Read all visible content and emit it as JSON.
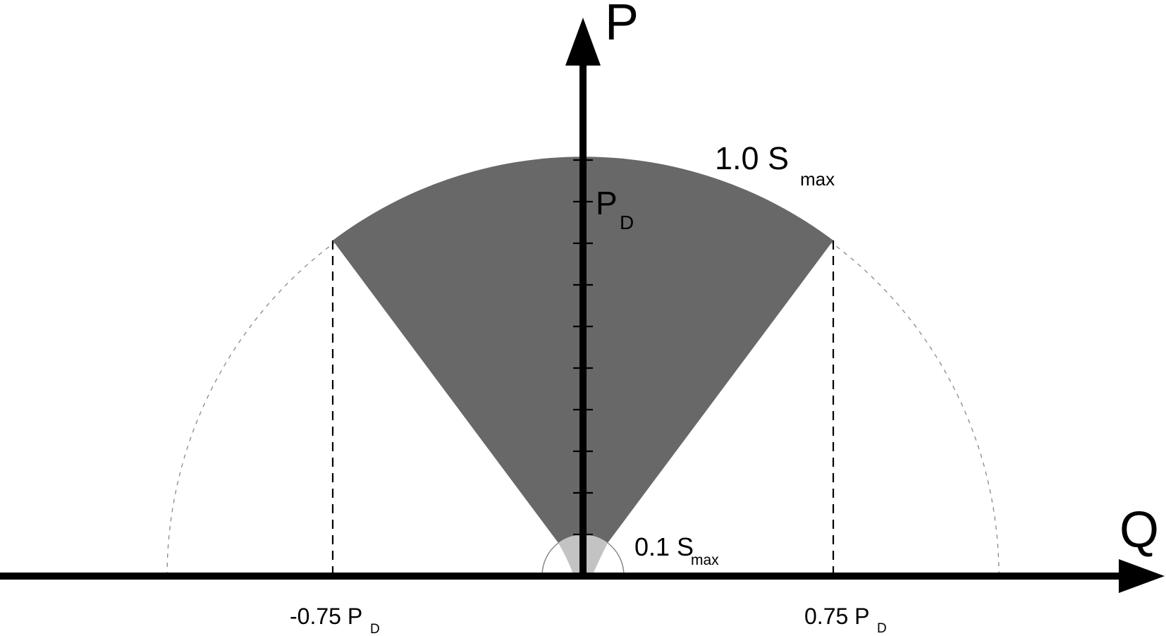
{
  "figure": {
    "description": "P-Q power capability diagram with shaded operating region",
    "axis_labels": {
      "vertical": "P",
      "horizontal": "Q"
    },
    "annotations": {
      "outer_limit_main": "1.0 S",
      "outer_limit_sub": "max",
      "inner_limit_main": "0.1 S",
      "inner_limit_sub": "max",
      "rated_power_main": "P",
      "rated_power_sub": "D",
      "q_limit_neg_main": "-0.75 P",
      "q_limit_neg_sub": "D",
      "q_limit_pos_main": "0.75 P",
      "q_limit_pos_sub": "D"
    },
    "colors": {
      "capability_region": "#686868",
      "low_power_region": "#C3C3C3",
      "axis": "#000000",
      "dashed_guide": "#909090"
    },
    "p_axis_tick_count": 10
  }
}
